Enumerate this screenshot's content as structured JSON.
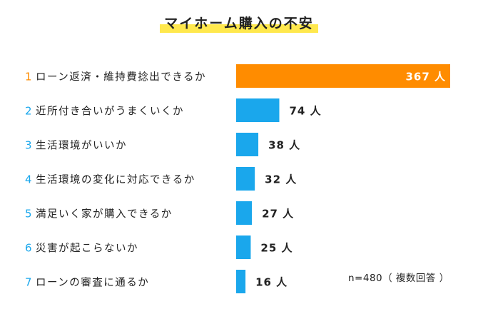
{
  "colors": {
    "highlight_bar": "#FF8C00",
    "bar": "#1AA7EC",
    "rank_normal": "#1AA7EC",
    "rank_top": "#FF8C00",
    "title_highlight": "#FFE84D"
  },
  "chart_data": {
    "type": "bar",
    "orientation": "horizontal",
    "title": "マイホーム購入の不安",
    "categories": [
      "ローン返済・維持費捻出できるか",
      "近所付き合いがうまくいくか",
      "生活環境がいいか",
      "生活環境の変化に対応できるか",
      "満足いく家が購入できるか",
      "災害が起こらないか",
      "ローンの審査に通るか"
    ],
    "ranks": [
      "1",
      "2",
      "3",
      "4",
      "5",
      "6",
      "7"
    ],
    "values": [
      367,
      74,
      38,
      32,
      27,
      25,
      16
    ],
    "unit": "人",
    "value_labels": [
      "367 人",
      "74 人",
      "38 人",
      "32 人",
      "27 人",
      "25 人",
      "16 人"
    ],
    "xlim": [
      0,
      367
    ],
    "grid": false,
    "legend": "none",
    "note": "n=480（ 複数回答 ）"
  }
}
